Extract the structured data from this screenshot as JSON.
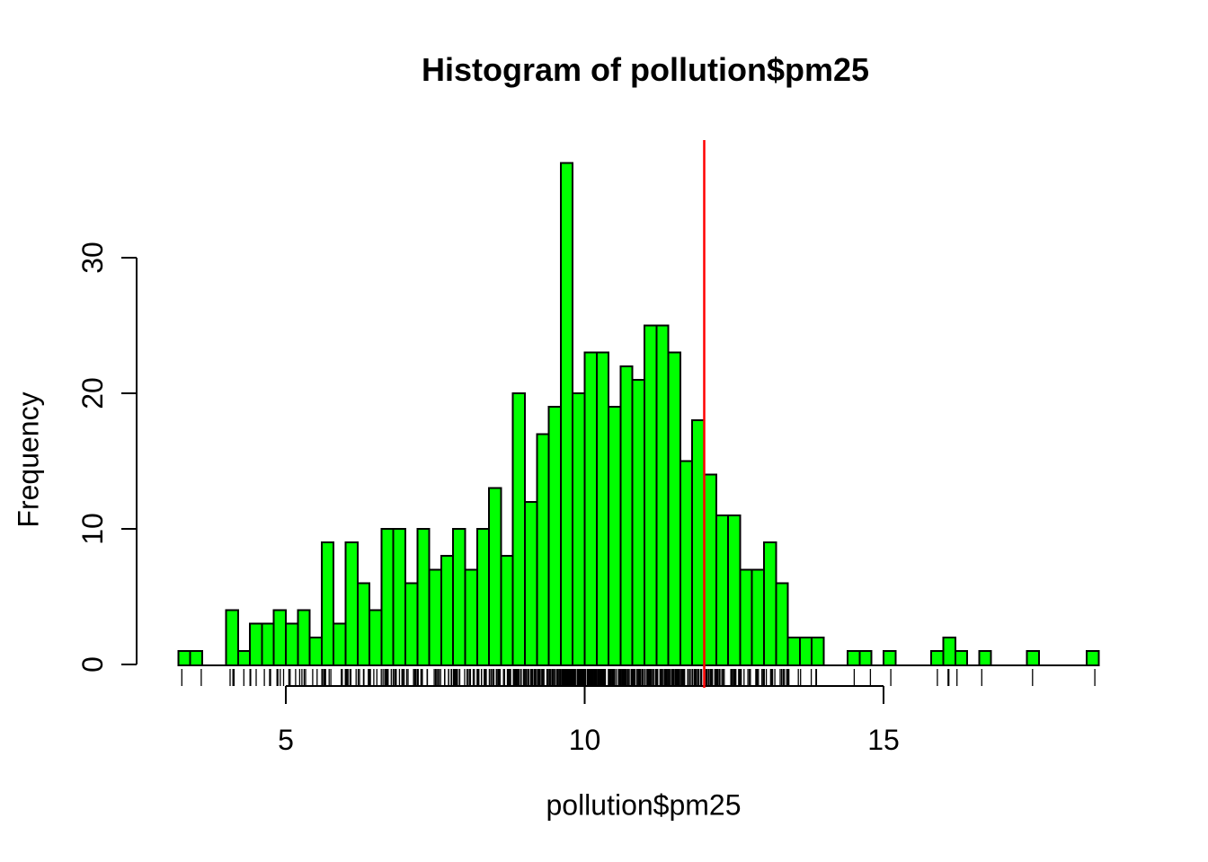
{
  "chart_data": {
    "type": "histogram",
    "title": "Histogram of pollution$pm25",
    "xlabel": "pollution$pm25",
    "ylabel": "Frequency",
    "bin_start": 3.2,
    "bin_width": 0.2,
    "counts": [
      1,
      1,
      0,
      0,
      4,
      1,
      3,
      3,
      4,
      3,
      4,
      2,
      9,
      3,
      9,
      6,
      4,
      10,
      10,
      6,
      10,
      7,
      8,
      10,
      7,
      10,
      13,
      8,
      20,
      12,
      17,
      19,
      37,
      20,
      23,
      23,
      19,
      22,
      21,
      25,
      25,
      23,
      15,
      18,
      14,
      11,
      11,
      7,
      7,
      9,
      6,
      2,
      2,
      2,
      0,
      0,
      1,
      1,
      0,
      1,
      0,
      0,
      0,
      1,
      2,
      1,
      0,
      1,
      0,
      0,
      0,
      1,
      0,
      0,
      0,
      0,
      1
    ],
    "x_ticks": [
      5,
      10,
      15
    ],
    "y_ticks": [
      0,
      10,
      20,
      30
    ],
    "xlim": [
      5,
      15
    ],
    "ylim": [
      0,
      30
    ],
    "bar_fill": "#00FF00",
    "bar_border": "#000000",
    "axis_color": "#000000",
    "reference_line": {
      "x": 12,
      "color": "#FF0000"
    },
    "rug": true,
    "legend": "none",
    "grid": false
  }
}
